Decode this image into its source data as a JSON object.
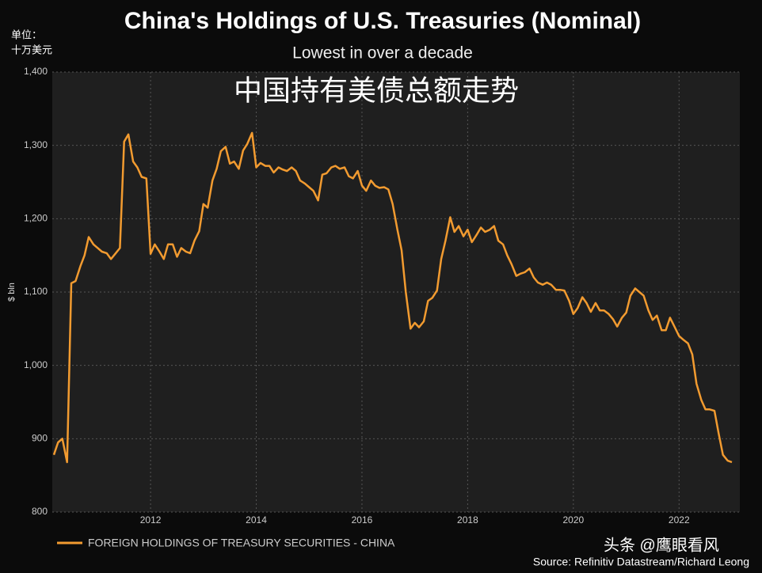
{
  "chart_data": {
    "type": "line",
    "title": "China's Holdings of U.S. Treasuries (Nominal)",
    "subtitle": "Lowest in over a decade",
    "annotation": "中国持有美债总额走势",
    "unit_label": [
      "单位：",
      "十万美元"
    ],
    "y_label": "$ bln",
    "watermark": "头条 @鹰眼看风",
    "source": "Source: Refinitiv Datastream/Richard Leong",
    "x": [
      2010.17,
      2010.25,
      2010.33,
      2010.42,
      2010.5,
      2010.58,
      2010.67,
      2010.75,
      2010.83,
      2010.92,
      2011,
      2011.08,
      2011.17,
      2011.25,
      2011.33,
      2011.42,
      2011.5,
      2011.58,
      2011.67,
      2011.75,
      2011.83,
      2011.92,
      2012,
      2012.08,
      2012.17,
      2012.25,
      2012.33,
      2012.42,
      2012.5,
      2012.58,
      2012.67,
      2012.75,
      2012.83,
      2012.92,
      2013,
      2013.08,
      2013.17,
      2013.25,
      2013.33,
      2013.42,
      2013.5,
      2013.58,
      2013.67,
      2013.75,
      2013.83,
      2013.92,
      2014,
      2014.08,
      2014.17,
      2014.25,
      2014.33,
      2014.42,
      2014.5,
      2014.58,
      2014.67,
      2014.75,
      2014.83,
      2014.92,
      2015,
      2015.08,
      2015.17,
      2015.25,
      2015.33,
      2015.42,
      2015.5,
      2015.58,
      2015.67,
      2015.75,
      2015.83,
      2015.92,
      2016,
      2016.08,
      2016.17,
      2016.25,
      2016.33,
      2016.42,
      2016.5,
      2016.58,
      2016.67,
      2016.75,
      2016.83,
      2016.92,
      2017,
      2017.08,
      2017.17,
      2017.25,
      2017.33,
      2017.42,
      2017.5,
      2017.58,
      2017.67,
      2017.75,
      2017.83,
      2017.92,
      2018,
      2018.08,
      2018.17,
      2018.25,
      2018.33,
      2018.42,
      2018.5,
      2018.58,
      2018.67,
      2018.75,
      2018.83,
      2018.92,
      2019,
      2019.08,
      2019.17,
      2019.25,
      2019.33,
      2019.42,
      2019.5,
      2019.58,
      2019.67,
      2019.75,
      2019.83,
      2019.92,
      2020,
      2020.08,
      2020.17,
      2020.25,
      2020.33,
      2020.42,
      2020.5,
      2020.58,
      2020.67,
      2020.75,
      2020.83,
      2020.92,
      2021,
      2021.08,
      2021.17,
      2021.25,
      2021.33,
      2021.42,
      2021.5,
      2021.58,
      2021.67,
      2021.75,
      2021.83,
      2021.92,
      2022,
      2022.08,
      2022.17,
      2022.25,
      2022.33,
      2022.42,
      2022.5,
      2022.58,
      2022.67,
      2022.75,
      2022.83,
      2022.92,
      2023
    ],
    "series": [
      {
        "name": "FOREIGN HOLDINGS OF TREASURY SECURITIES - CHINA",
        "color": "#f29b30",
        "values": [
          878,
          895,
          900,
          868,
          1112,
          1115,
          1135,
          1150,
          1175,
          1165,
          1160,
          1155,
          1153,
          1145,
          1152,
          1160,
          1305,
          1315,
          1278,
          1270,
          1257,
          1255,
          1152,
          1165,
          1155,
          1145,
          1165,
          1165,
          1148,
          1160,
          1155,
          1153,
          1170,
          1183,
          1220,
          1215,
          1252,
          1268,
          1292,
          1298,
          1275,
          1278,
          1268,
          1293,
          1302,
          1317,
          1270,
          1276,
          1272,
          1272,
          1263,
          1270,
          1267,
          1265,
          1270,
          1265,
          1252,
          1248,
          1243,
          1238,
          1225,
          1260,
          1262,
          1270,
          1272,
          1268,
          1270,
          1258,
          1255,
          1265,
          1245,
          1238,
          1252,
          1245,
          1242,
          1243,
          1240,
          1220,
          1185,
          1157,
          1100,
          1050,
          1058,
          1052,
          1060,
          1088,
          1092,
          1102,
          1145,
          1170,
          1202,
          1182,
          1190,
          1176,
          1185,
          1168,
          1178,
          1188,
          1182,
          1185,
          1190,
          1170,
          1165,
          1150,
          1138,
          1122,
          1125,
          1127,
          1132,
          1120,
          1113,
          1110,
          1113,
          1110,
          1103,
          1103,
          1102,
          1088,
          1070,
          1078,
          1093,
          1085,
          1073,
          1085,
          1075,
          1075,
          1070,
          1063,
          1053,
          1065,
          1072,
          1095,
          1105,
          1100,
          1095,
          1075,
          1062,
          1068,
          1048,
          1048,
          1065,
          1052,
          1040,
          1035,
          1030,
          1015,
          975,
          953,
          940,
          940,
          938,
          907,
          878,
          870,
          868
        ]
      }
    ],
    "xlim": [
      2010.14,
      2023.15
    ],
    "xticks": [
      2012,
      2014,
      2016,
      2018,
      2020,
      2022
    ],
    "ylim": [
      800,
      1400
    ],
    "yticks": [
      800,
      900,
      {
        "value": 1000,
        "label": "1,000"
      },
      {
        "value": 1100,
        "label": "1,100"
      },
      {
        "value": 1200,
        "label": "1,200"
      },
      {
        "value": 1300,
        "label": "1,300"
      },
      {
        "value": 1400,
        "label": "1,400"
      }
    ],
    "grid": true
  }
}
